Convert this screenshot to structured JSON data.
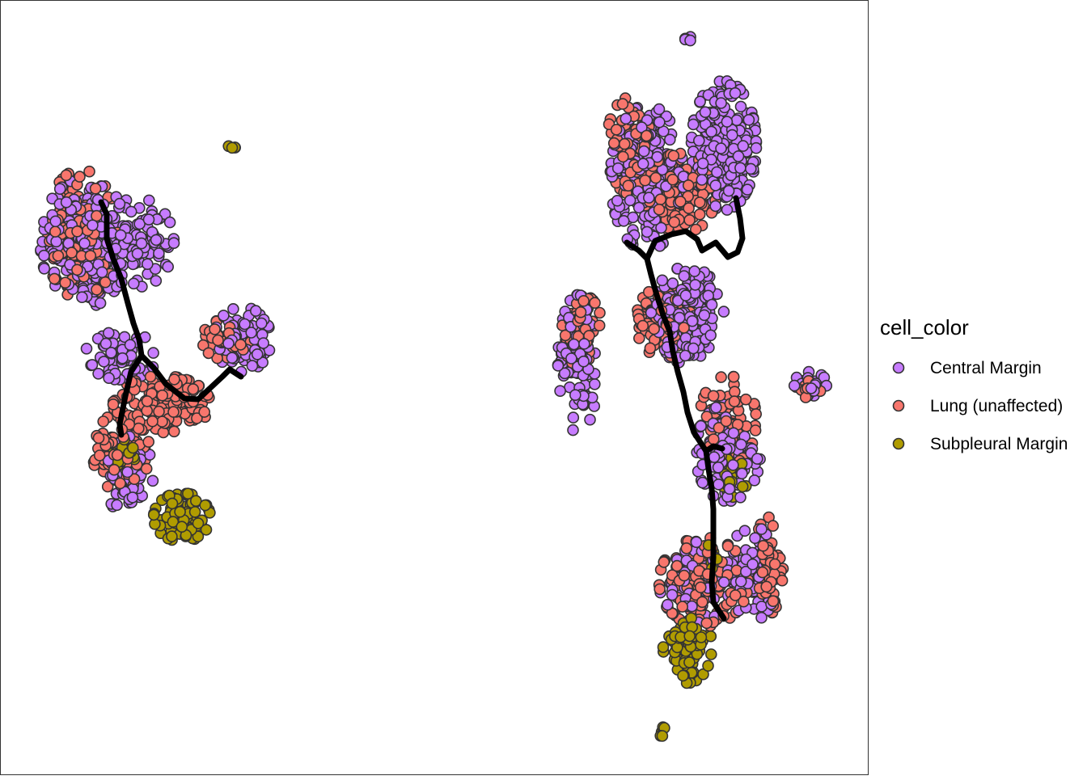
{
  "chart_data": {
    "type": "scatter",
    "title": "",
    "xlabel": "",
    "ylabel": "",
    "grid": false,
    "legend_position": "right",
    "legend": {
      "title": "cell_color",
      "entries": [
        {
          "label": "Central Margin",
          "color": "#C77CFF"
        },
        {
          "label": "Lung (unaffected)",
          "color": "#F8766D"
        },
        {
          "label": "Subpleural Margin",
          "color": "#B09C00"
        }
      ]
    },
    "series": [
      {
        "name": "Central Margin",
        "color": "#C77CFF",
        "clusters": [
          {
            "cx": 105,
            "cy": 300,
            "rx": 55,
            "ry": 80,
            "n": 240
          },
          {
            "cx": 170,
            "cy": 300,
            "rx": 45,
            "ry": 55,
            "n": 100
          },
          {
            "cx": 300,
            "cy": 420,
            "rx": 35,
            "ry": 40,
            "n": 90
          },
          {
            "cx": 150,
            "cy": 440,
            "rx": 45,
            "ry": 30,
            "n": 60
          },
          {
            "cx": 160,
            "cy": 590,
            "rx": 30,
            "ry": 50,
            "n": 50
          },
          {
            "cx": 895,
            "cy": 180,
            "rx": 40,
            "ry": 80,
            "n": 220
          },
          {
            "cx": 800,
            "cy": 220,
            "rx": 45,
            "ry": 90,
            "n": 200
          },
          {
            "cx": 850,
            "cy": 390,
            "rx": 45,
            "ry": 60,
            "n": 170
          },
          {
            "cx": 715,
            "cy": 450,
            "rx": 25,
            "ry": 85,
            "n": 100
          },
          {
            "cx": 900,
            "cy": 560,
            "rx": 40,
            "ry": 60,
            "n": 110
          },
          {
            "cx": 860,
            "cy": 720,
            "rx": 45,
            "ry": 50,
            "n": 80
          },
          {
            "cx": 930,
            "cy": 710,
            "rx": 30,
            "ry": 60,
            "n": 70
          },
          {
            "cx": 1002,
            "cy": 475,
            "rx": 20,
            "ry": 15,
            "n": 25
          },
          {
            "cx": 852,
            "cy": 55,
            "rx": 6,
            "ry": 12,
            "n": 6
          }
        ]
      },
      {
        "name": "Lung (unaffected)",
        "color": "#F8766D",
        "clusters": [
          {
            "cx": 100,
            "cy": 290,
            "rx": 45,
            "ry": 80,
            "n": 140
          },
          {
            "cx": 200,
            "cy": 500,
            "rx": 60,
            "ry": 35,
            "n": 140
          },
          {
            "cx": 150,
            "cy": 560,
            "rx": 35,
            "ry": 50,
            "n": 90
          },
          {
            "cx": 280,
            "cy": 420,
            "rx": 30,
            "ry": 25,
            "n": 40
          },
          {
            "cx": 840,
            "cy": 240,
            "rx": 45,
            "ry": 50,
            "n": 150
          },
          {
            "cx": 780,
            "cy": 180,
            "rx": 30,
            "ry": 60,
            "n": 70
          },
          {
            "cx": 720,
            "cy": 410,
            "rx": 25,
            "ry": 45,
            "n": 60
          },
          {
            "cx": 820,
            "cy": 400,
            "rx": 35,
            "ry": 45,
            "n": 80
          },
          {
            "cx": 900,
            "cy": 520,
            "rx": 35,
            "ry": 55,
            "n": 60
          },
          {
            "cx": 870,
            "cy": 720,
            "rx": 55,
            "ry": 55,
            "n": 130
          },
          {
            "cx": 950,
            "cy": 700,
            "rx": 18,
            "ry": 60,
            "n": 60
          },
          {
            "cx": 1000,
            "cy": 480,
            "rx": 15,
            "ry": 12,
            "n": 10
          }
        ]
      },
      {
        "name": "Subpleural Margin",
        "color": "#B09C00",
        "clusters": [
          {
            "cx": 225,
            "cy": 640,
            "rx": 35,
            "ry": 30,
            "n": 90
          },
          {
            "cx": 150,
            "cy": 560,
            "rx": 30,
            "ry": 25,
            "n": 25
          },
          {
            "cx": 850,
            "cy": 800,
            "rx": 30,
            "ry": 45,
            "n": 80
          },
          {
            "cx": 905,
            "cy": 590,
            "rx": 20,
            "ry": 25,
            "n": 25
          },
          {
            "cx": 880,
            "cy": 680,
            "rx": 8,
            "ry": 25,
            "n": 10
          },
          {
            "cx": 818,
            "cy": 905,
            "rx": 6,
            "ry": 14,
            "n": 5
          },
          {
            "cx": 288,
            "cy": 181,
            "rx": 7,
            "ry": 4,
            "n": 4
          }
        ]
      }
    ],
    "trajectories": [
      {
        "name": "left-trajectory-main",
        "points": [
          [
            125,
            250
          ],
          [
            132,
            265
          ],
          [
            132,
            295
          ],
          [
            140,
            320
          ],
          [
            150,
            345
          ],
          [
            158,
            375
          ],
          [
            165,
            400
          ],
          [
            172,
            420
          ],
          [
            175,
            440
          ],
          [
            162,
            460
          ],
          [
            155,
            490
          ],
          [
            148,
            525
          ],
          [
            150,
            538
          ]
        ]
      },
      {
        "name": "left-trajectory-branch",
        "points": [
          [
            175,
            440
          ],
          [
            190,
            455
          ],
          [
            205,
            475
          ],
          [
            228,
            493
          ],
          [
            245,
            494
          ],
          [
            260,
            480
          ],
          [
            275,
            466
          ],
          [
            284,
            457
          ],
          [
            298,
            466
          ]
        ]
      },
      {
        "name": "right-trajectory-main",
        "points": [
          [
            775,
            300
          ],
          [
            790,
            310
          ],
          [
            800,
            320
          ],
          [
            805,
            340
          ],
          [
            812,
            365
          ],
          [
            820,
            390
          ],
          [
            828,
            410
          ],
          [
            832,
            435
          ],
          [
            838,
            460
          ],
          [
            845,
            485
          ],
          [
            850,
            510
          ],
          [
            858,
            535
          ],
          [
            873,
            558
          ],
          [
            876,
            580
          ],
          [
            880,
            605
          ],
          [
            882,
            630
          ],
          [
            882,
            660
          ],
          [
            882,
            690
          ],
          [
            880,
            720
          ],
          [
            882,
            745
          ],
          [
            895,
            765
          ]
        ]
      },
      {
        "name": "right-trajectory-upper-branch",
        "points": [
          [
            800,
            320
          ],
          [
            810,
            298
          ],
          [
            830,
            290
          ],
          [
            848,
            286
          ],
          [
            862,
            296
          ],
          [
            868,
            310
          ],
          [
            885,
            300
          ],
          [
            900,
            318
          ],
          [
            912,
            312
          ],
          [
            918,
            295
          ],
          [
            915,
            270
          ],
          [
            910,
            245
          ]
        ]
      },
      {
        "name": "right-trajectory-side-branch",
        "points": [
          [
            873,
            558
          ],
          [
            882,
            552
          ],
          [
            893,
            555
          ]
        ]
      }
    ]
  }
}
